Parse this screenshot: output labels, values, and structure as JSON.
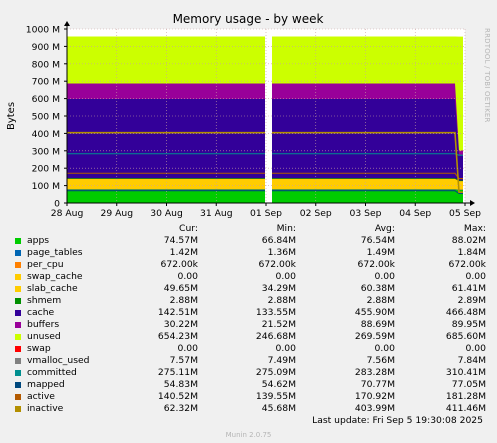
{
  "title": "Memory usage - by week",
  "side_label": "RRDTOOL / TOBI OETIKER",
  "footer": "Munin 2.0.75",
  "last_update": "Last update:  Fri Sep  5 19:30:08 2025",
  "legend_headers": [
    "Cur:",
    "Min:",
    "Avg:",
    "Max:"
  ],
  "legend": [
    {
      "name": "apps",
      "color": "#00cc00",
      "cur": "74.57M",
      "min": "66.84M",
      "avg": "76.54M",
      "max": "88.02M"
    },
    {
      "name": "page_tables",
      "color": "#0066b3",
      "cur": "1.42M",
      "min": "1.36M",
      "avg": "1.49M",
      "max": "1.84M"
    },
    {
      "name": "per_cpu",
      "color": "#ff8000",
      "cur": "672.00k",
      "min": "672.00k",
      "avg": "672.00k",
      "max": "672.00k"
    },
    {
      "name": "swap_cache",
      "color": "#ffcc00",
      "cur": "0.00",
      "min": "0.00",
      "avg": "0.00",
      "max": "0.00"
    },
    {
      "name": "slab_cache",
      "color": "#ffcc00",
      "cur": "49.65M",
      "min": "34.29M",
      "avg": "60.38M",
      "max": "61.41M"
    },
    {
      "name": "shmem",
      "color": "#008f00",
      "cur": "2.88M",
      "min": "2.88M",
      "avg": "2.88M",
      "max": "2.89M"
    },
    {
      "name": "cache",
      "color": "#330099",
      "cur": "142.51M",
      "min": "133.55M",
      "avg": "455.90M",
      "max": "466.48M"
    },
    {
      "name": "buffers",
      "color": "#990099",
      "cur": "30.22M",
      "min": "21.52M",
      "avg": "88.69M",
      "max": "89.95M"
    },
    {
      "name": "unused",
      "color": "#ccff00",
      "cur": "654.23M",
      "min": "246.68M",
      "avg": "269.59M",
      "max": "685.60M"
    },
    {
      "name": "swap",
      "color": "#ff0000",
      "cur": "0.00",
      "min": "0.00",
      "avg": "0.00",
      "max": "0.00"
    },
    {
      "name": "vmalloc_used",
      "color": "#808080",
      "cur": "7.57M",
      "min": "7.49M",
      "avg": "7.56M",
      "max": "7.84M"
    },
    {
      "name": "committed",
      "color": "#008f8f",
      "cur": "275.11M",
      "min": "275.09M",
      "avg": "283.28M",
      "max": "310.41M"
    },
    {
      "name": "mapped",
      "color": "#00487d",
      "cur": "54.83M",
      "min": "54.62M",
      "avg": "70.77M",
      "max": "77.05M"
    },
    {
      "name": "active",
      "color": "#b35a00",
      "cur": "140.52M",
      "min": "139.55M",
      "avg": "170.92M",
      "max": "181.28M"
    },
    {
      "name": "inactive",
      "color": "#b38f00",
      "cur": "62.32M",
      "min": "45.68M",
      "avg": "403.99M",
      "max": "411.46M"
    }
  ],
  "chart_data": {
    "type": "area",
    "title": "Memory usage - by week",
    "ylabel": "Bytes",
    "ylim": [
      0,
      1000
    ],
    "ytick_labels": [
      "0",
      "100 M",
      "200 M",
      "300 M",
      "400 M",
      "500 M",
      "600 M",
      "700 M",
      "800 M",
      "900 M",
      "1000 M"
    ],
    "ytick_values": [
      0,
      100,
      200,
      300,
      400,
      500,
      600,
      700,
      800,
      900,
      1000
    ],
    "categories": [
      "28 Aug",
      "29 Aug",
      "30 Aug",
      "31 Aug",
      "01 Sep",
      "02 Sep",
      "03 Sep",
      "04 Sep",
      "05 Sep"
    ],
    "grid": true,
    "gap_between": [
      "01 Sep",
      "01 Sep"
    ],
    "stacked_series_order": [
      "apps",
      "page_tables",
      "per_cpu",
      "swap_cache",
      "slab_cache",
      "shmem",
      "cache",
      "buffers",
      "unused",
      "swap"
    ],
    "stack_typical_tops": {
      "apps": 76.5,
      "page_tables": 78,
      "per_cpu": 78.7,
      "slab_cache": 139,
      "shmem": 142,
      "cache": 598,
      "buffers": 687,
      "unused": 957
    },
    "stack_end_tops": {
      "apps": 74.6,
      "page_tables": 76,
      "per_cpu": 76.7,
      "slab_cache": 126,
      "shmem": 129,
      "cache": 272,
      "buffers": 302,
      "unused": 956
    },
    "line_typical": {
      "committed": 283,
      "mapped": 70.8,
      "active": 171,
      "inactive": 404
    },
    "line_end": {
      "committed": 275,
      "mapped": 54.8,
      "active": 140.5,
      "inactive": 62.3
    }
  }
}
